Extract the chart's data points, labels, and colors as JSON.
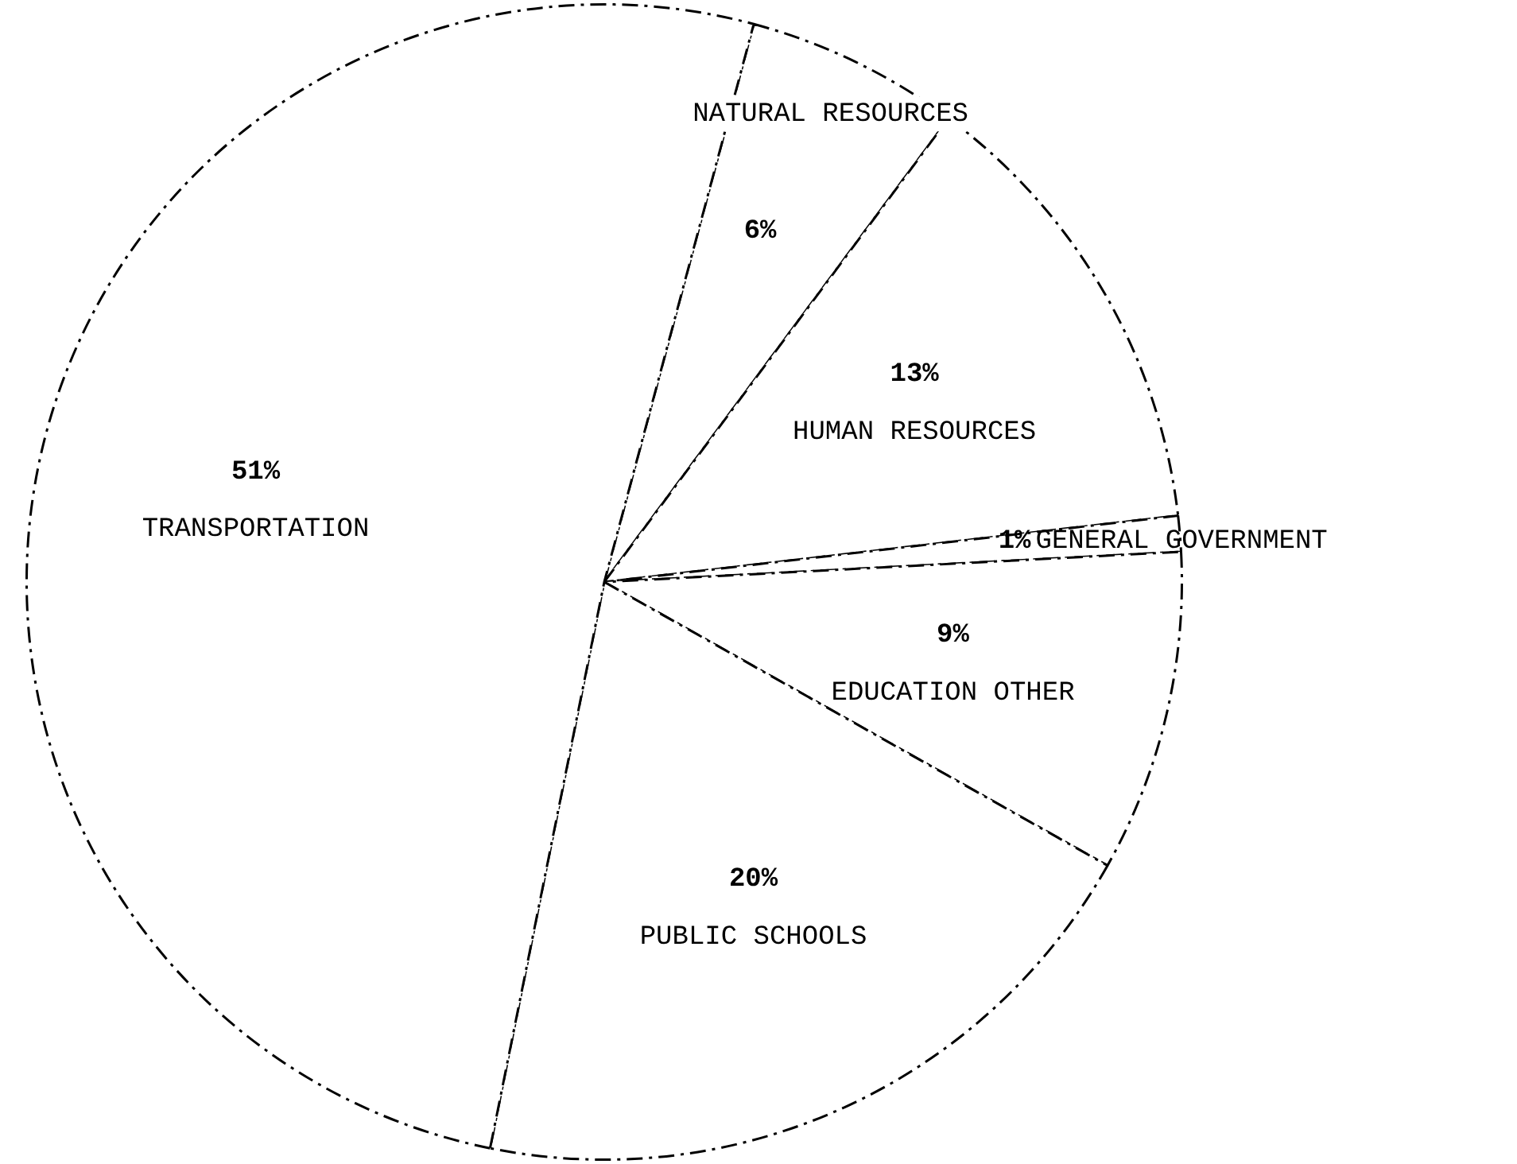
{
  "chart_data": {
    "type": "pie",
    "categories": [
      "NATURAL RESOURCES",
      "HUMAN RESOURCES",
      "GENERAL GOVERNMENT",
      "EDUCATION OTHER",
      "PUBLIC SCHOOLS",
      "TRANSPORTATION"
    ],
    "values": [
      6,
      13,
      1,
      9,
      20,
      51
    ],
    "value_labels": [
      "6%",
      "13%",
      "1%",
      "9%",
      "20%",
      "51%"
    ],
    "colors": [
      "#ffffff",
      "#ffffff",
      "#ffffff",
      "#ffffff",
      "#ffffff",
      "#ffffff"
    ],
    "legend": false
  }
}
